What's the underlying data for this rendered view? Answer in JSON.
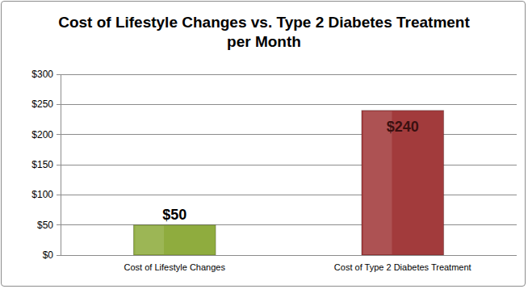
{
  "chart_data": {
    "type": "bar",
    "title": "Cost of Lifestyle Changes vs. Type 2 Diabetes Treatment per Month",
    "categories": [
      "Cost of Lifestyle Changes",
      "Cost of Type 2 Diabetes Treatment"
    ],
    "values": [
      50,
      240
    ],
    "value_labels": [
      "$50",
      "$240"
    ],
    "colors": [
      "#8fac3e",
      "#a23b3c"
    ],
    "ylim": [
      0,
      300
    ],
    "yticks": [
      {
        "value": 0,
        "label": "$0"
      },
      {
        "value": 50,
        "label": "$50"
      },
      {
        "value": 100,
        "label": "$100"
      },
      {
        "value": 150,
        "label": "$150"
      },
      {
        "value": 200,
        "label": "$200"
      },
      {
        "value": 250,
        "label": "$250"
      },
      {
        "value": 300,
        "label": "$300"
      }
    ],
    "grid": true,
    "data_labels": true
  }
}
